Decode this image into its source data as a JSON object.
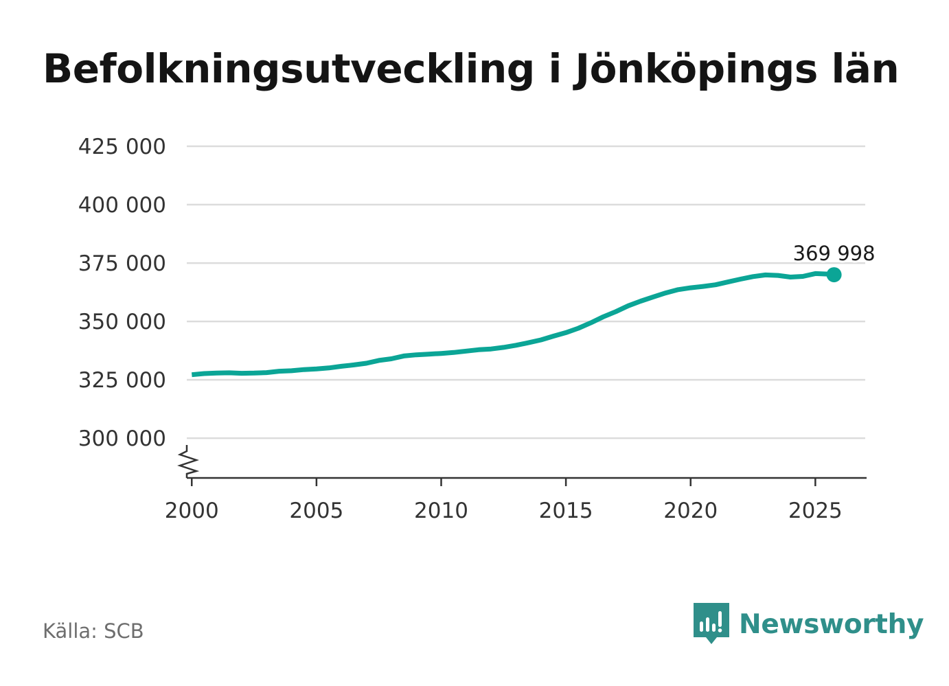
{
  "title": "Befolkningsutveckling i Jönköpings län",
  "source": "Källa: SCB",
  "brand": {
    "name": "Newsworthy",
    "logo_icon": "bar-chart-speech-bubble-icon",
    "color": "#2f8f8a"
  },
  "colors": {
    "line": "#0ba596",
    "grid": "#dcdcdc",
    "axis": "#333333"
  },
  "chart_data": {
    "type": "line",
    "title": "Befolkningsutveckling i Jönköpings län",
    "xlabel": "",
    "ylabel": "",
    "xlim": [
      1999.8,
      2027.0
    ],
    "ylim": [
      283000,
      425000
    ],
    "grid": true,
    "axis_break": true,
    "x_ticks": [
      {
        "value": 2000,
        "label": "2000"
      },
      {
        "value": 2005,
        "label": "2005"
      },
      {
        "value": 2010,
        "label": "2010"
      },
      {
        "value": 2015,
        "label": "2015"
      },
      {
        "value": 2020,
        "label": "2020"
      },
      {
        "value": 2025,
        "label": "2025"
      }
    ],
    "y_ticks": [
      {
        "value": 300000,
        "label": "300 000"
      },
      {
        "value": 325000,
        "label": "325 000"
      },
      {
        "value": 350000,
        "label": "350 000"
      },
      {
        "value": 375000,
        "label": "375 000"
      },
      {
        "value": 400000,
        "label": "400 000"
      },
      {
        "value": 425000,
        "label": "425 000"
      }
    ],
    "series": [
      {
        "name": "Befolkning",
        "x": [
          2000.0,
          2000.5,
          2001.0,
          2001.5,
          2002.0,
          2002.5,
          2003.0,
          2003.5,
          2004.0,
          2004.5,
          2005.0,
          2005.5,
          2006.0,
          2006.5,
          2007.0,
          2007.5,
          2008.0,
          2008.5,
          2009.0,
          2009.5,
          2010.0,
          2010.5,
          2011.0,
          2011.5,
          2012.0,
          2012.5,
          2013.0,
          2013.5,
          2014.0,
          2014.5,
          2015.0,
          2015.5,
          2016.0,
          2016.5,
          2017.0,
          2017.5,
          2018.0,
          2018.5,
          2019.0,
          2019.5,
          2020.0,
          2020.5,
          2021.0,
          2021.5,
          2022.0,
          2022.5,
          2023.0,
          2023.5,
          2024.0,
          2024.5,
          2025.0,
          2025.5,
          2025.75
        ],
        "values": [
          327200,
          327700,
          327900,
          328000,
          327800,
          327900,
          328100,
          328700,
          328900,
          329400,
          329700,
          330100,
          330800,
          331400,
          332100,
          333300,
          334000,
          335200,
          335700,
          336000,
          336300,
          336700,
          337300,
          337900,
          338200,
          338900,
          339800,
          340900,
          342100,
          343700,
          345200,
          347100,
          349400,
          352000,
          354200,
          356700,
          358700,
          360500,
          362200,
          363600,
          364400,
          365000,
          365700,
          366900,
          368100,
          369200,
          369900,
          369700,
          369000,
          369300,
          370500,
          370300,
          369998
        ]
      }
    ],
    "end_point": {
      "x": 2025.75,
      "value": 369998,
      "label": "369 998"
    }
  }
}
